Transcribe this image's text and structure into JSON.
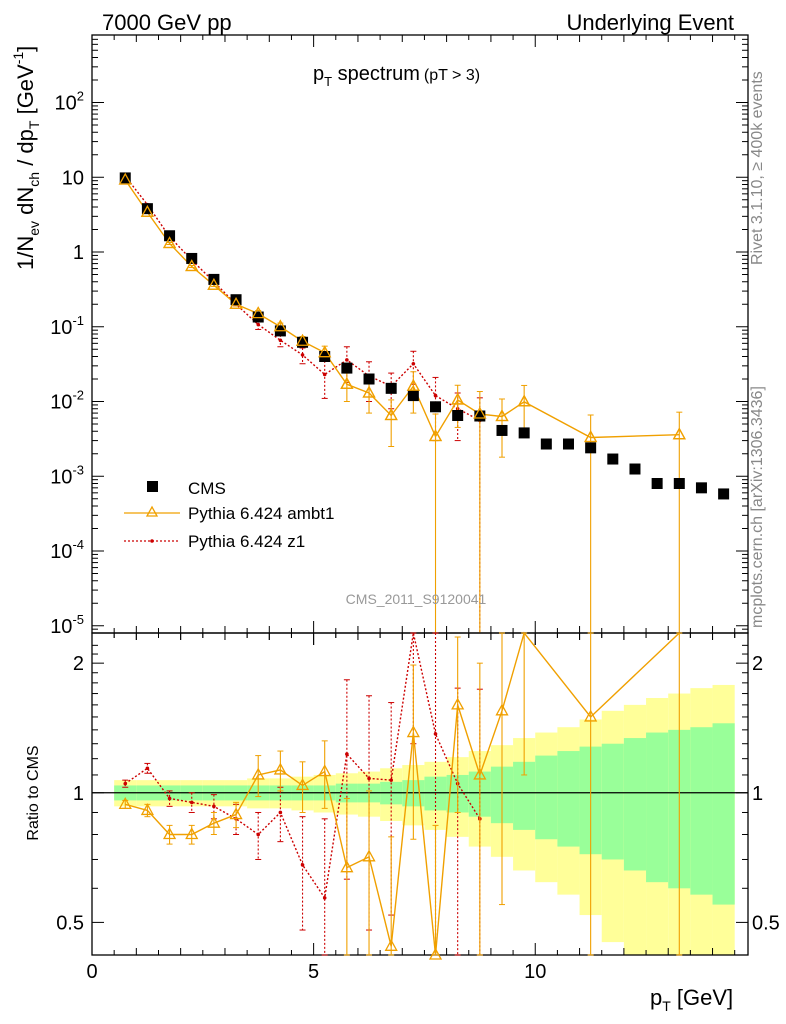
{
  "header": {
    "left": "7000 GeV pp",
    "right": "Underlying Event"
  },
  "side_labels": {
    "rivet": "Rivet 3.1.10, ≥ 400k events",
    "mcplots": "mcplots.cern.ch [arXiv:1306.3436]"
  },
  "plot_title": "p_T spectrum",
  "plot_title_main": "p",
  "plot_title_sub": "T",
  "plot_title_rest": " spectrum",
  "plot_title_cut": "(pT >  3)",
  "watermark": "CMS_2011_S9120041",
  "y_axis_label": "1/N_ev dN_ch / dp_T [GeV^-1]",
  "ratio_axis_label": "Ratio to CMS",
  "x_axis_label": "p_T [GeV]",
  "legend": [
    {
      "label": "CMS",
      "marker": "square",
      "color": "#000000"
    },
    {
      "label": "Pythia 6.424 ambt1",
      "marker": "triangle",
      "color": "#f0a000"
    },
    {
      "label": "Pythia 6.424 z1",
      "marker": "dot",
      "color": "#cc0000"
    }
  ],
  "colors": {
    "cms": "#000000",
    "ambt1": "#f0a000",
    "z1": "#cc0000",
    "band_inner": "#99ff99",
    "band_outer": "#ffff99"
  },
  "chart_data": [
    {
      "type": "scatter",
      "panel": "main",
      "xlabel": "p_T [GeV]",
      "ylabel": "1/N_ev dN_ch / dp_T [GeV^-1]",
      "ylog": true,
      "xlim": [
        0,
        14.8
      ],
      "ylim": [
        8e-06,
        800
      ],
      "y_ticks": [
        {
          "v": 1e-05,
          "label": "10^-5"
        },
        {
          "v": 0.0001,
          "label": "10^-4"
        },
        {
          "v": 0.001,
          "label": "10^-3"
        },
        {
          "v": 0.01,
          "label": "10^-2"
        },
        {
          "v": 0.1,
          "label": "10^-1"
        },
        {
          "v": 1,
          "label": "1"
        },
        {
          "v": 10,
          "label": "10"
        },
        {
          "v": 100,
          "label": "10^2"
        }
      ],
      "series": [
        {
          "name": "CMS",
          "x": [
            0.75,
            1.25,
            1.75,
            2.25,
            2.75,
            3.25,
            3.75,
            4.25,
            4.75,
            5.25,
            5.75,
            6.25,
            6.75,
            7.25,
            7.75,
            8.25,
            8.75,
            9.25,
            9.75,
            10.25,
            10.75,
            11.25,
            11.75,
            12.25,
            12.75,
            13.25,
            13.75,
            14.25
          ],
          "y": [
            9.8,
            3.8,
            1.65,
            0.82,
            0.43,
            0.23,
            0.135,
            0.088,
            0.062,
            0.04,
            0.028,
            0.02,
            0.015,
            0.012,
            0.0085,
            0.0065,
            0.0064,
            0.0041,
            0.0038,
            0.0027,
            0.0027,
            0.0024,
            0.0017,
            0.00125,
            0.0008,
            0.0008,
            0.0007,
            0.00058
          ]
        },
        {
          "name": "Pythia 6.424 ambt1",
          "x": [
            0.75,
            1.25,
            1.75,
            2.25,
            2.75,
            3.25,
            3.75,
            4.25,
            4.75,
            5.25,
            5.75,
            6.25,
            6.75,
            7.25,
            7.75,
            8.25,
            8.75,
            9.25,
            9.75,
            11.25,
            13.25
          ],
          "y": [
            9.2,
            3.4,
            1.3,
            0.64,
            0.36,
            0.2,
            0.15,
            0.1,
            0.064,
            0.045,
            0.017,
            0.013,
            0.0065,
            0.016,
            0.0034,
            0.0105,
            0.0068,
            0.0063,
            0.0099,
            0.0033,
            0.0036
          ],
          "err_lo": [
            0.2,
            0.1,
            0.04,
            0.02,
            0.015,
            0.01,
            0.015,
            0.012,
            0.01,
            0.01,
            0.007,
            0.006,
            0.004,
            0.009,
            0.0034,
            0.006,
            0.0068,
            0.0045,
            0.0065,
            0.0033,
            0.0036
          ],
          "err_hi": [
            0.2,
            0.1,
            0.04,
            0.02,
            0.015,
            0.01,
            0.015,
            0.012,
            0.01,
            0.01,
            0.007,
            0.006,
            0.004,
            0.009,
            0.0034,
            0.006,
            0.0068,
            0.0045,
            0.0065,
            0.0033,
            0.0036
          ]
        },
        {
          "name": "Pythia 6.424 z1",
          "x": [
            0.75,
            1.25,
            1.75,
            2.25,
            2.75,
            3.25,
            3.75,
            4.25,
            4.75,
            5.25,
            5.75,
            6.25,
            6.75,
            7.25,
            7.75,
            8.25,
            8.75
          ],
          "y": [
            10.3,
            4.3,
            1.6,
            0.78,
            0.4,
            0.2,
            0.107,
            0.066,
            0.042,
            0.023,
            0.036,
            0.022,
            0.016,
            0.032,
            0.012,
            0.008,
            0.0056
          ],
          "err_lo": [
            0.2,
            0.1,
            0.04,
            0.02,
            0.015,
            0.01,
            0.015,
            0.012,
            0.01,
            0.012,
            0.018,
            0.012,
            0.008,
            0.015,
            0.009,
            0.005,
            0.0056
          ],
          "err_hi": [
            0.2,
            0.1,
            0.04,
            0.02,
            0.015,
            0.01,
            0.015,
            0.012,
            0.01,
            0.012,
            0.018,
            0.012,
            0.008,
            0.015,
            0.009,
            0.005,
            0.0056
          ]
        }
      ]
    },
    {
      "type": "line",
      "panel": "ratio",
      "xlabel": "p_T [GeV]",
      "ylabel": "Ratio to CMS",
      "ylog": true,
      "xlim": [
        0,
        14.8
      ],
      "ylim": [
        0.42,
        2.35
      ],
      "y_ticks": [
        {
          "v": 0.5,
          "label": "0.5"
        },
        {
          "v": 1,
          "label": "1"
        },
        {
          "v": 2,
          "label": "2"
        }
      ],
      "x_ticks": [
        0,
        5,
        10
      ],
      "band_edges": [
        0.5,
        1.0,
        1.5,
        2.0,
        2.5,
        3.0,
        3.5,
        4.0,
        4.5,
        5.0,
        5.5,
        6.0,
        6.5,
        7.0,
        7.5,
        8.0,
        8.5,
        9.0,
        9.5,
        10.0,
        10.5,
        11.0,
        11.5,
        12.0,
        12.5,
        13.0,
        13.5,
        14.0,
        14.5
      ],
      "band_inner": [
        0.04,
        0.04,
        0.04,
        0.04,
        0.04,
        0.04,
        0.04,
        0.04,
        0.04,
        0.04,
        0.05,
        0.05,
        0.06,
        0.07,
        0.09,
        0.1,
        0.12,
        0.15,
        0.18,
        0.22,
        0.25,
        0.28,
        0.3,
        0.34,
        0.38,
        0.4,
        0.42,
        0.45
      ],
      "band_outer": [
        0.07,
        0.07,
        0.07,
        0.07,
        0.07,
        0.07,
        0.08,
        0.08,
        0.09,
        0.1,
        0.11,
        0.12,
        0.14,
        0.16,
        0.18,
        0.21,
        0.25,
        0.29,
        0.34,
        0.38,
        0.42,
        0.48,
        0.55,
        0.6,
        0.66,
        0.7,
        0.75,
        0.78
      ],
      "series": [
        {
          "name": "Pythia 6.424 ambt1",
          "x": [
            0.75,
            1.25,
            1.75,
            2.25,
            2.75,
            3.25,
            3.75,
            4.25,
            4.75,
            5.25,
            5.75,
            6.25,
            6.75,
            7.25,
            7.75,
            8.25,
            8.75,
            9.25,
            9.75,
            11.25,
            13.25
          ],
          "y": [
            0.94,
            0.91,
            0.8,
            0.8,
            0.85,
            0.89,
            1.1,
            1.13,
            1.04,
            1.12,
            0.67,
            0.71,
            0.44,
            1.38,
            0.42,
            1.6,
            1.1,
            1.55,
            2.6,
            1.5,
            2.9
          ],
          "err_lo": [
            0.02,
            0.03,
            0.04,
            0.04,
            0.05,
            0.06,
            0.12,
            0.12,
            0.14,
            0.2,
            0.3,
            0.3,
            0.35,
            0.6,
            0.42,
            0.7,
            0.9,
            1.0,
            1.5,
            1.5,
            2.9
          ],
          "err_hi": [
            0.02,
            0.03,
            0.04,
            0.04,
            0.05,
            0.06,
            0.12,
            0.12,
            0.14,
            0.2,
            0.3,
            0.3,
            0.35,
            0.6,
            0.42,
            0.7,
            0.9,
            1.0,
            1.5,
            1.5,
            2.9
          ]
        },
        {
          "name": "Pythia 6.424 z1",
          "x": [
            0.75,
            1.25,
            1.75,
            2.25,
            2.75,
            3.25,
            3.75,
            4.25,
            4.75,
            5.25,
            5.75,
            6.25,
            6.75,
            7.25,
            7.75,
            8.25,
            8.75
          ],
          "y": [
            1.05,
            1.14,
            0.97,
            0.95,
            0.93,
            0.87,
            0.8,
            0.9,
            0.68,
            0.57,
            1.23,
            1.08,
            1.07,
            2.5,
            1.37,
            1.05,
            0.87
          ],
          "err_lo": [
            0.02,
            0.03,
            0.04,
            0.05,
            0.06,
            0.07,
            0.1,
            0.13,
            0.2,
            0.3,
            0.6,
            0.6,
            0.55,
            1.2,
            1.0,
            0.7,
            0.87
          ],
          "err_hi": [
            0.02,
            0.03,
            0.04,
            0.05,
            0.06,
            0.07,
            0.1,
            0.13,
            0.2,
            0.3,
            0.6,
            0.6,
            0.55,
            1.2,
            1.0,
            0.7,
            0.87
          ]
        }
      ]
    }
  ]
}
